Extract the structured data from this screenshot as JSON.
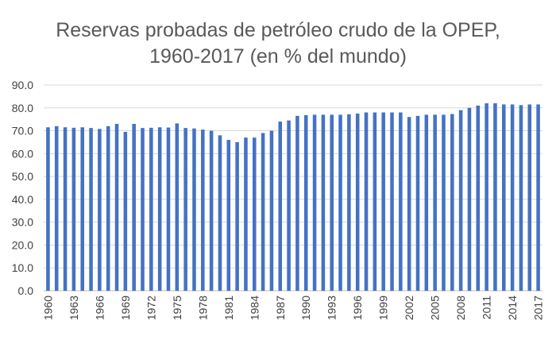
{
  "chart_data": {
    "type": "bar",
    "title_lines": [
      "Reservas probadas de petróleo crudo de la OPEP,",
      "1960-2017 (en % del mundo)"
    ],
    "xlabel": "",
    "ylabel": "",
    "ylim": [
      0,
      90
    ],
    "y_ticks": [
      "0.0",
      "10.0",
      "20.0",
      "30.0",
      "40.0",
      "50.0",
      "60.0",
      "70.0",
      "80.0",
      "90.0"
    ],
    "y_tick_values": [
      0,
      10,
      20,
      30,
      40,
      50,
      60,
      70,
      80,
      90
    ],
    "grid": true,
    "bar_color": "#4472C4",
    "categories": [
      "1960",
      "1961",
      "1962",
      "1963",
      "1964",
      "1965",
      "1966",
      "1967",
      "1968",
      "1969",
      "1970",
      "1971",
      "1972",
      "1973",
      "1974",
      "1975",
      "1976",
      "1977",
      "1978",
      "1979",
      "1980",
      "1981",
      "1982",
      "1983",
      "1984",
      "1985",
      "1986",
      "1987",
      "1988",
      "1989",
      "1990",
      "1991",
      "1992",
      "1993",
      "1994",
      "1995",
      "1996",
      "1997",
      "1998",
      "1999",
      "2000",
      "2001",
      "2002",
      "2003",
      "2004",
      "2005",
      "2006",
      "2007",
      "2008",
      "2009",
      "2010",
      "2011",
      "2012",
      "2013",
      "2014",
      "2015",
      "2016",
      "2017"
    ],
    "x_tick_labels": [
      "1960",
      "1963",
      "1966",
      "1969",
      "1972",
      "1975",
      "1978",
      "1981",
      "1984",
      "1987",
      "1990",
      "1993",
      "1996",
      "1999",
      "2002",
      "2005",
      "2008",
      "2011",
      "2014",
      "2017"
    ],
    "values": [
      71.5,
      72.0,
      71.5,
      71.3,
      71.5,
      71.2,
      70.8,
      72.0,
      73.0,
      69.5,
      73.0,
      71.2,
      71.3,
      71.5,
      71.4,
      73.2,
      71.2,
      71.0,
      70.5,
      70.0,
      68.0,
      66.0,
      65.0,
      67.0,
      67.0,
      69.0,
      70.0,
      74.0,
      74.5,
      76.5,
      76.8,
      77.0,
      77.0,
      77.0,
      77.0,
      77.2,
      77.5,
      78.0,
      78.0,
      78.0,
      78.0,
      78.0,
      76.0,
      76.5,
      77.0,
      77.0,
      77.0,
      77.3,
      79.0,
      80.0,
      81.0,
      82.0,
      82.0,
      81.5,
      81.5,
      81.2,
      81.5,
      81.5
    ]
  }
}
